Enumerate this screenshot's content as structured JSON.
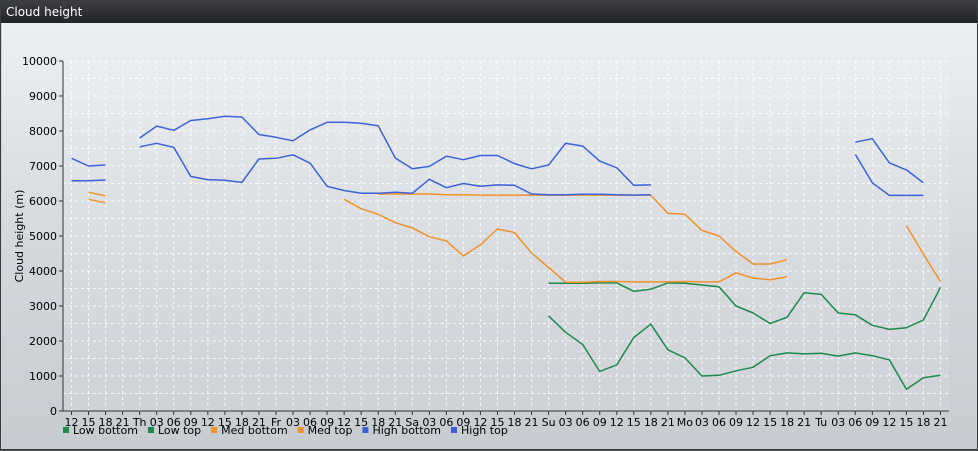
{
  "window": {
    "title": "Cloud height"
  },
  "chart_data": {
    "type": "line",
    "ylabel": "Cloud height (m)",
    "xlabel": "",
    "ylim": [
      0,
      10000
    ],
    "yticks": [
      0,
      1000,
      2000,
      3000,
      4000,
      5000,
      6000,
      7000,
      8000,
      9000,
      10000
    ],
    "grid": true,
    "legend_position": "bottom-left",
    "x": [
      "12",
      "15",
      "18",
      "21",
      "Th",
      "03",
      "06",
      "09",
      "12",
      "15",
      "18",
      "21",
      "Fr",
      "03",
      "06",
      "09",
      "12",
      "15",
      "18",
      "21",
      "Sa",
      "03",
      "06",
      "09",
      "12",
      "15",
      "18",
      "21",
      "Su",
      "03",
      "06",
      "09",
      "12",
      "15",
      "18",
      "21",
      "Mo",
      "03",
      "06",
      "09",
      "12",
      "15",
      "18",
      "21",
      "Tu",
      "03",
      "06",
      "09",
      "12",
      "15",
      "18",
      "21"
    ],
    "series": [
      {
        "name": "Low bottom",
        "color": "#1e8a4a",
        "values": [
          null,
          null,
          null,
          null,
          null,
          null,
          null,
          null,
          null,
          null,
          null,
          null,
          null,
          null,
          null,
          null,
          null,
          null,
          null,
          null,
          null,
          null,
          null,
          null,
          null,
          null,
          null,
          null,
          2720,
          2250,
          1900,
          1130,
          1320,
          2100,
          2480,
          1750,
          1520,
          1000,
          1020,
          1150,
          1250,
          1580,
          1660,
          1630,
          1650,
          1570,
          1660,
          1580,
          1460,
          620,
          950,
          1020
        ]
      },
      {
        "name": "Low top",
        "color": "#1e8a4a",
        "values": [
          null,
          null,
          null,
          null,
          null,
          null,
          null,
          null,
          null,
          null,
          null,
          null,
          null,
          null,
          null,
          null,
          null,
          null,
          null,
          null,
          null,
          null,
          null,
          null,
          null,
          null,
          null,
          null,
          3650,
          3650,
          3650,
          3660,
          3660,
          3420,
          3480,
          3660,
          3650,
          3600,
          3550,
          3000,
          2800,
          2500,
          2680,
          3380,
          3330,
          2800,
          2750,
          2450,
          2330,
          2380,
          2600,
          3530
        ]
      },
      {
        "name": "Med bottom",
        "color": "#f0922a",
        "values": [
          null,
          6050,
          5950,
          null,
          null,
          null,
          null,
          null,
          null,
          null,
          null,
          null,
          null,
          null,
          null,
          null,
          6050,
          5780,
          5620,
          5380,
          5230,
          4980,
          4860,
          4430,
          4750,
          5200,
          5100,
          4510,
          4100,
          3680,
          3680,
          3700,
          3700,
          3690,
          3690,
          3690,
          3700,
          3690,
          3690,
          3950,
          3800,
          3750,
          3830,
          null,
          null,
          null,
          null,
          null,
          null,
          5300,
          4480,
          3700
        ]
      },
      {
        "name": "Med top",
        "color": "#f0922a",
        "values": [
          null,
          6250,
          6150,
          null,
          null,
          null,
          null,
          null,
          null,
          null,
          null,
          null,
          null,
          null,
          null,
          null,
          null,
          null,
          6200,
          6200,
          6200,
          6200,
          6180,
          6180,
          6170,
          6170,
          6170,
          6170,
          6170,
          6170,
          6170,
          6170,
          6170,
          6170,
          6170,
          5650,
          5620,
          5160,
          5000,
          4560,
          4200,
          4200,
          4320,
          null,
          null,
          null,
          null,
          null,
          null,
          null,
          null,
          null
        ]
      },
      {
        "name": "High bottom",
        "color": "#3a63d8",
        "values": [
          6580,
          6580,
          6600,
          null,
          7550,
          7650,
          7530,
          6700,
          6610,
          6590,
          6530,
          7200,
          7220,
          7320,
          7080,
          6420,
          6300,
          6220,
          6220,
          6250,
          6220,
          6620,
          6380,
          6500,
          6420,
          6460,
          6450,
          6200,
          6180,
          6180,
          6190,
          6190,
          6180,
          6170,
          6180,
          null,
          null,
          null,
          null,
          null,
          null,
          null,
          null,
          null,
          null,
          null,
          7330,
          6520,
          6160,
          6160,
          6160,
          null
        ]
      },
      {
        "name": "High top",
        "color": "#3a63d8",
        "values": [
          7220,
          7000,
          7030,
          null,
          7800,
          8140,
          8020,
          8300,
          8350,
          8420,
          8400,
          7900,
          7820,
          7720,
          8030,
          8250,
          8250,
          8220,
          8150,
          7230,
          6920,
          6990,
          7280,
          7180,
          7300,
          7300,
          7070,
          6920,
          7030,
          7650,
          7570,
          7140,
          6950,
          6450,
          6460,
          null,
          null,
          null,
          null,
          null,
          null,
          null,
          null,
          null,
          null,
          null,
          7680,
          7780,
          7090,
          6890,
          6520,
          null
        ]
      }
    ]
  }
}
